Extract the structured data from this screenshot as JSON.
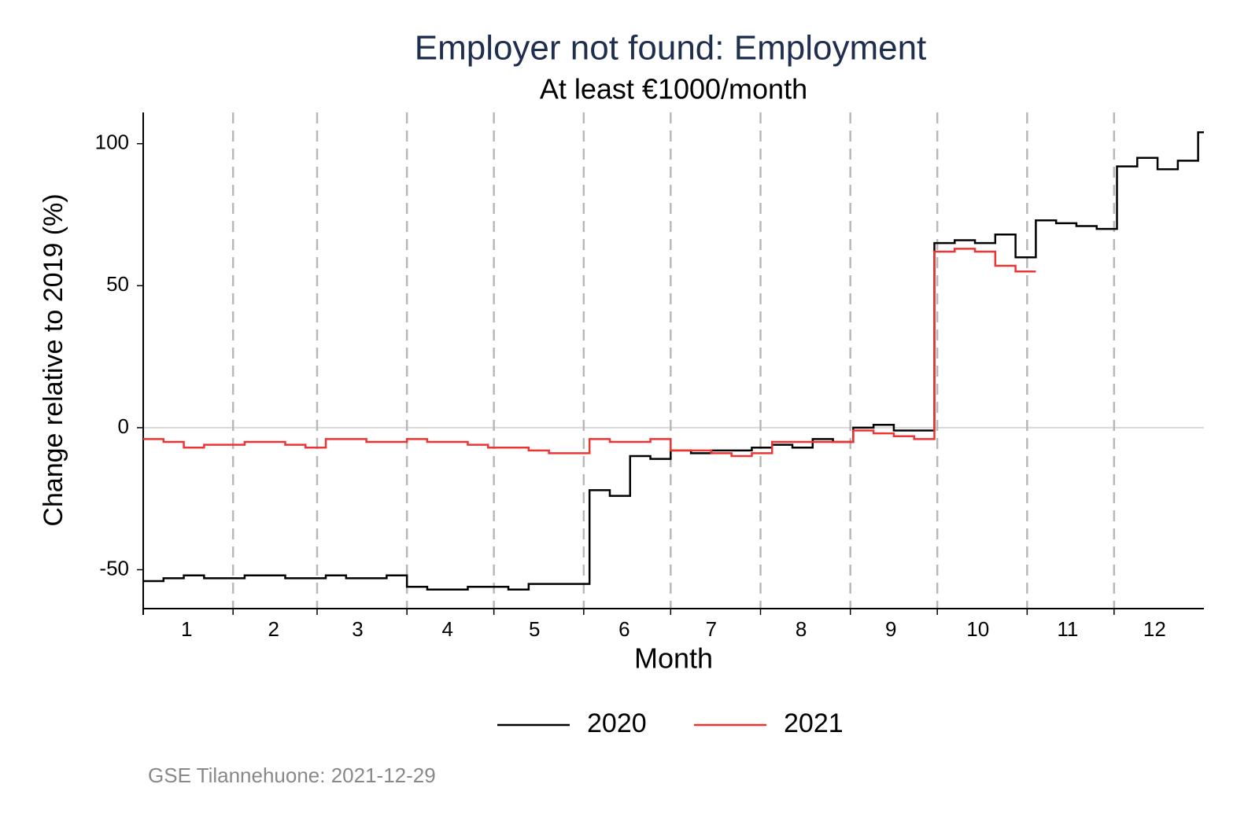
{
  "chart_data": {
    "type": "step",
    "title": "Employer not found: Employment",
    "subtitle": "At least €1000/month",
    "xlabel": "Month",
    "ylabel": "Change relative to 2019 (%)",
    "source": "GSE Tilannehuone: 2021-12-29",
    "xlim": [
      1,
      367
    ],
    "ylim": [
      -63.7,
      111
    ],
    "xticks": [
      {
        "value": 16,
        "label": "1"
      },
      {
        "value": 46,
        "label": "2"
      },
      {
        "value": 75,
        "label": "3"
      },
      {
        "value": 106,
        "label": "4"
      },
      {
        "value": 136,
        "label": "5"
      },
      {
        "value": 167,
        "label": "6"
      },
      {
        "value": 197,
        "label": "7"
      },
      {
        "value": 228,
        "label": "8"
      },
      {
        "value": 259,
        "label": "9"
      },
      {
        "value": 289,
        "label": "10"
      },
      {
        "value": 320,
        "label": "11"
      },
      {
        "value": 350,
        "label": "12"
      }
    ],
    "yticks": [
      -50,
      0,
      50,
      100
    ],
    "month_boundaries": [
      32,
      61,
      92,
      122,
      153,
      183,
      214,
      245,
      275,
      306,
      336
    ],
    "reference_line": 0,
    "legend": "bottom",
    "x": [
      1,
      8,
      15,
      22,
      29,
      36,
      43,
      50,
      57,
      64,
      71,
      78,
      85,
      92,
      99,
      106,
      113,
      120,
      127,
      134,
      141,
      148,
      155,
      162,
      169,
      176,
      183,
      190,
      197,
      204,
      211,
      218,
      225,
      232,
      239,
      246,
      253,
      260,
      267,
      274,
      281,
      288,
      295,
      302,
      309,
      316,
      323,
      330,
      337,
      344,
      351,
      358,
      365
    ],
    "series": [
      {
        "name": "2020",
        "color": "#000000",
        "values": [
          -54,
          -53,
          -52,
          -53,
          -53,
          -52,
          -52,
          -53,
          -53,
          -52,
          -53,
          -53,
          -52,
          -56,
          -57,
          -57,
          -56,
          -56,
          -57,
          -55,
          -55,
          -55,
          -22,
          -24,
          -10,
          -11,
          -8,
          -9,
          -8,
          -8,
          -7,
          -6,
          -7,
          -4,
          -5,
          0,
          1,
          -1,
          -1,
          65,
          66,
          65,
          68,
          60,
          73,
          72,
          71,
          70,
          92,
          95,
          91,
          94,
          104
        ]
      },
      {
        "name": "2021",
        "color": "#ee3333",
        "values": [
          -4,
          -5,
          -7,
          -6,
          -6,
          -5,
          -5,
          -6,
          -7,
          -4,
          -4,
          -5,
          -5,
          -4,
          -5,
          -5,
          -6,
          -7,
          -7,
          -8,
          -9,
          -9,
          -4,
          -5,
          -5,
          -4,
          -8,
          -8,
          -9,
          -10,
          -9,
          -5,
          -5,
          -5,
          -5,
          -1,
          -2,
          -3,
          -4,
          62,
          63,
          62,
          57,
          55,
          null,
          null,
          null,
          null,
          null,
          null,
          null,
          null,
          null
        ]
      }
    ]
  }
}
